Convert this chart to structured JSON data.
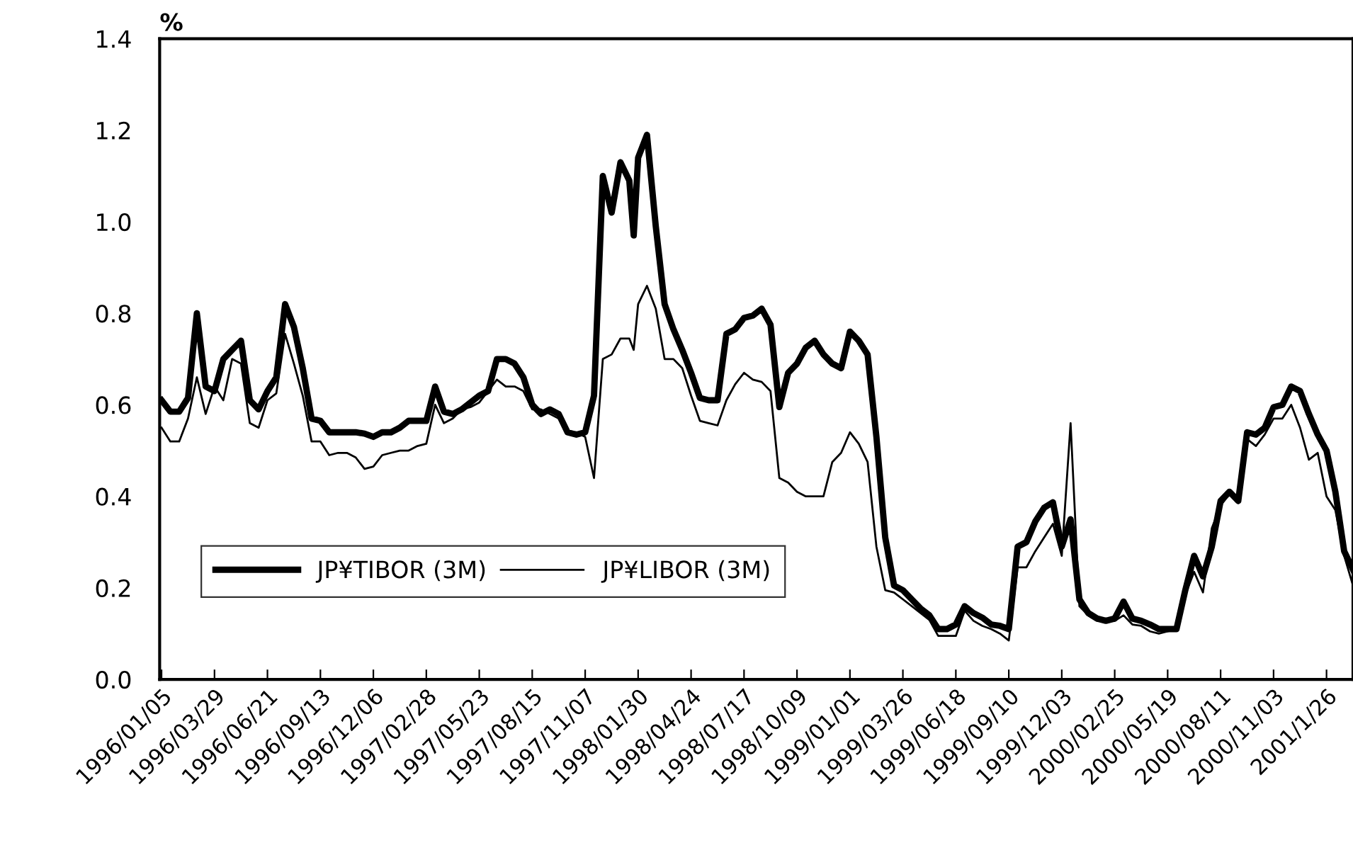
{
  "chart_data": {
    "type": "line",
    "ylabel": "%",
    "x": [
      "1996-01-05",
      "1996-01-19",
      "1996-02-02",
      "1996-02-16",
      "1996-03-01",
      "1996-03-15",
      "1996-03-29",
      "1996-04-12",
      "1996-04-26",
      "1996-05-10",
      "1996-05-24",
      "1996-06-07",
      "1996-06-21",
      "1996-07-05",
      "1996-07-19",
      "1996-08-02",
      "1996-08-16",
      "1996-08-30",
      "1996-09-13",
      "1996-09-27",
      "1996-10-11",
      "1996-10-25",
      "1996-11-08",
      "1996-11-22",
      "1996-12-06",
      "1996-12-20",
      "1997-01-03",
      "1997-01-17",
      "1997-01-31",
      "1997-02-14",
      "1997-02-28",
      "1997-03-14",
      "1997-03-28",
      "1997-04-11",
      "1997-04-25",
      "1997-05-09",
      "1997-05-23",
      "1997-06-06",
      "1997-06-20",
      "1997-07-04",
      "1997-07-18",
      "1997-08-01",
      "1997-08-15",
      "1997-08-29",
      "1997-09-12",
      "1997-09-26",
      "1997-10-10",
      "1997-10-24",
      "1997-11-07",
      "1997-11-21",
      "1997-12-05",
      "1997-12-19",
      "1998-01-02",
      "1998-01-16",
      "1998-01-23",
      "1998-01-30",
      "1998-02-13",
      "1998-02-27",
      "1998-03-13",
      "1998-03-27",
      "1998-04-10",
      "1998-04-24",
      "1998-05-08",
      "1998-05-22",
      "1998-06-05",
      "1998-06-19",
      "1998-07-03",
      "1998-07-17",
      "1998-07-31",
      "1998-08-14",
      "1998-08-28",
      "1998-09-11",
      "1998-09-25",
      "1998-10-09",
      "1998-10-23",
      "1998-11-06",
      "1998-11-20",
      "1998-12-04",
      "1998-12-18",
      "1999-01-01",
      "1999-01-15",
      "1999-01-29",
      "1999-02-12",
      "1999-02-26",
      "1999-03-12",
      "1999-03-26",
      "1999-04-09",
      "1999-04-23",
      "1999-05-07",
      "1999-05-21",
      "1999-06-04",
      "1999-06-18",
      "1999-07-02",
      "1999-07-16",
      "1999-07-30",
      "1999-08-13",
      "1999-08-27",
      "1999-09-10",
      "1999-09-24",
      "1999-10-08",
      "1999-10-22",
      "1999-11-05",
      "1999-11-19",
      "1999-12-03",
      "1999-12-17",
      "1999-12-31",
      "2000-01-14",
      "2000-01-28",
      "2000-02-11",
      "2000-02-25",
      "2000-03-10",
      "2000-03-24",
      "2000-04-07",
      "2000-04-21",
      "2000-05-05",
      "2000-05-19",
      "2000-06-02",
      "2000-06-16",
      "2000-06-30",
      "2000-07-14",
      "2000-07-28",
      "2000-08-11",
      "2000-08-25",
      "2000-09-08",
      "2000-09-22",
      "2000-10-06",
      "2000-10-20",
      "2000-11-03",
      "2000-11-17",
      "2000-12-01",
      "2000-12-15",
      "2000-12-29",
      "2001-01-12",
      "2001-01-26",
      "2001-02-09",
      "2001-02-23",
      "2001-03-09"
    ],
    "series": [
      {
        "name": "JP¥TIBOR (3M)",
        "color": "#000000",
        "values": [
          0.61,
          0.585,
          0.585,
          0.615,
          0.8,
          0.64,
          0.63,
          0.7,
          0.72,
          0.74,
          0.61,
          0.59,
          0.63,
          0.66,
          0.82,
          0.77,
          0.68,
          0.57,
          0.565,
          0.54,
          0.54,
          0.54,
          0.54,
          0.537,
          0.53,
          0.54,
          0.54,
          0.55,
          0.565,
          0.565,
          0.565,
          0.64,
          0.585,
          0.58,
          0.59,
          0.605,
          0.62,
          0.63,
          0.7,
          0.7,
          0.69,
          0.66,
          0.6,
          0.58,
          0.59,
          0.58,
          0.54,
          0.535,
          0.54,
          0.62,
          1.1,
          1.02,
          1.13,
          1.09,
          0.97,
          1.14,
          1.19,
          0.99,
          0.82,
          0.765,
          0.72,
          0.67,
          0.615,
          0.61,
          0.61,
          0.755,
          0.765,
          0.79,
          0.795,
          0.81,
          0.775,
          0.595,
          0.67,
          0.69,
          0.725,
          0.74,
          0.71,
          0.69,
          0.68,
          0.76,
          0.74,
          0.71,
          0.53,
          0.31,
          0.205,
          0.195,
          0.175,
          0.155,
          0.14,
          0.11,
          0.11,
          0.12,
          0.16,
          0.145,
          0.135,
          0.12,
          0.117,
          0.11,
          0.29,
          0.3,
          0.345,
          0.375,
          0.387,
          0.29,
          0.35,
          0.175,
          0.145,
          0.133,
          0.128,
          0.133,
          0.17,
          0.133,
          0.128,
          0.12,
          0.11,
          0.11,
          0.11,
          0.195,
          0.27,
          0.225,
          0.29,
          0.39,
          0.41,
          0.39,
          0.54,
          0.535,
          0.55,
          0.595,
          0.6,
          0.64,
          0.63,
          0.58,
          0.535,
          0.5,
          0.41,
          0.28,
          0.24
        ]
      },
      {
        "name": "JP¥LIBOR (3M)",
        "color": "#000000",
        "values": [
          0.55,
          0.52,
          0.52,
          0.57,
          0.66,
          0.58,
          0.64,
          0.61,
          0.7,
          0.69,
          0.56,
          0.55,
          0.61,
          0.625,
          0.755,
          0.69,
          0.62,
          0.52,
          0.52,
          0.49,
          0.495,
          0.495,
          0.485,
          0.46,
          0.465,
          0.49,
          0.495,
          0.5,
          0.5,
          0.51,
          0.515,
          0.6,
          0.56,
          0.57,
          0.59,
          0.595,
          0.605,
          0.63,
          0.655,
          0.64,
          0.64,
          0.63,
          0.59,
          0.59,
          0.58,
          0.57,
          0.54,
          0.54,
          0.53,
          0.44,
          0.7,
          0.71,
          0.745,
          0.745,
          0.72,
          0.82,
          0.86,
          0.81,
          0.7,
          0.7,
          0.68,
          0.62,
          0.565,
          0.56,
          0.555,
          0.61,
          0.645,
          0.67,
          0.655,
          0.65,
          0.63,
          0.44,
          0.43,
          0.41,
          0.4,
          0.4,
          0.4,
          0.475,
          0.495,
          0.54,
          0.515,
          0.475,
          0.29,
          0.195,
          0.19,
          0.175,
          0.16,
          0.145,
          0.13,
          0.095,
          0.095,
          0.095,
          0.15,
          0.128,
          0.117,
          0.11,
          0.1,
          0.085,
          0.245,
          0.245,
          0.28,
          0.31,
          0.34,
          0.27,
          0.56,
          0.16,
          0.14,
          0.128,
          0.128,
          0.128,
          0.14,
          0.12,
          0.117,
          0.105,
          0.1,
          0.105,
          0.11,
          0.185,
          0.235,
          0.19,
          0.33,
          0.38,
          0.405,
          0.385,
          0.525,
          0.51,
          0.535,
          0.57,
          0.57,
          0.6,
          0.55,
          0.48,
          0.495,
          0.4,
          0.37,
          0.27,
          0.205
        ]
      }
    ],
    "xlim": [
      "1996-01-02",
      "2001-03-09"
    ],
    "xticks": [
      {
        "value": "1996-01-05",
        "label": "1996/01/05"
      },
      {
        "value": "1996-03-29",
        "label": "1996/03/29"
      },
      {
        "value": "1996-06-21",
        "label": "1996/06/21"
      },
      {
        "value": "1996-09-13",
        "label": "1996/09/13"
      },
      {
        "value": "1996-12-06",
        "label": "1996/12/06"
      },
      {
        "value": "1997-02-28",
        "label": "1997/02/28"
      },
      {
        "value": "1997-05-23",
        "label": "1997/05/23"
      },
      {
        "value": "1997-08-15",
        "label": "1997/08/15"
      },
      {
        "value": "1997-11-07",
        "label": "1997/11/07"
      },
      {
        "value": "1998-01-30",
        "label": "1998/01/30"
      },
      {
        "value": "1998-04-24",
        "label": "1998/04/24"
      },
      {
        "value": "1998-07-17",
        "label": "1998/07/17"
      },
      {
        "value": "1998-10-09",
        "label": "1998/10/09"
      },
      {
        "value": "1999-01-01",
        "label": "1999/01/01"
      },
      {
        "value": "1999-03-26",
        "label": "1999/03/26"
      },
      {
        "value": "1999-06-18",
        "label": "1999/06/18"
      },
      {
        "value": "1999-09-10",
        "label": "1999/09/10"
      },
      {
        "value": "1999-12-03",
        "label": "1999/12/03"
      },
      {
        "value": "2000-02-25",
        "label": "2000/02/25"
      },
      {
        "value": "2000-05-19",
        "label": "2000/05/19"
      },
      {
        "value": "2000-08-11",
        "label": "2000/08/11"
      },
      {
        "value": "2000-11-03",
        "label": "2000/11/03"
      },
      {
        "value": "2001-01-26",
        "label": "2001/1/26"
      }
    ],
    "ylim": [
      0,
      1.4
    ],
    "yticks": [
      {
        "value": 0,
        "label": "0.0"
      },
      {
        "value": 0.2,
        "label": "0.2"
      },
      {
        "value": 0.4,
        "label": "0.4"
      },
      {
        "value": 0.6,
        "label": "0.6"
      },
      {
        "value": 0.8,
        "label": "0.8"
      },
      {
        "value": 1.0,
        "label": "1.0"
      },
      {
        "value": 1.2,
        "label": "1.2"
      },
      {
        "value": 1.4,
        "label": "1.4"
      }
    ],
    "grid": false,
    "legend": "bottom left",
    "marker": "none",
    "line_style": "solid"
  }
}
